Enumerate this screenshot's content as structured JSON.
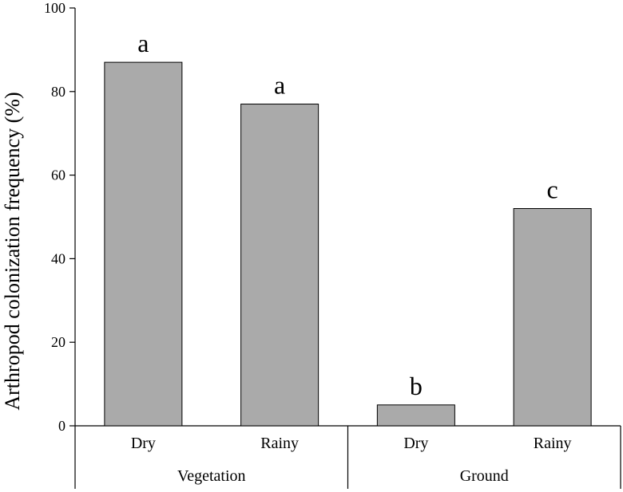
{
  "chart_data": {
    "type": "bar",
    "title": "",
    "xlabel": "",
    "ylabel": "Arthropod colonization frequency (%)",
    "ylim": [
      0,
      100
    ],
    "yticks": [
      0,
      20,
      40,
      60,
      80,
      100
    ],
    "grid": false,
    "categories": [
      "Dry",
      "Rainy",
      "Dry",
      "Rainy"
    ],
    "groups": [
      "Vegetation",
      "Vegetation",
      "Ground",
      "Ground"
    ],
    "group_labels": [
      "Vegetation",
      "Ground"
    ],
    "values": [
      87,
      77,
      5,
      52
    ],
    "significance_letters": [
      "a",
      "a",
      "b",
      "c"
    ],
    "bar_color": "#aaaaaa"
  }
}
